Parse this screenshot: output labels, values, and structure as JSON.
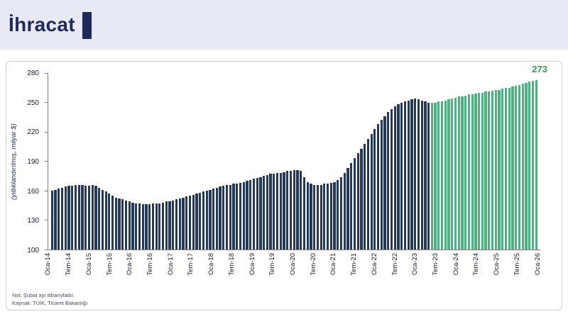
{
  "header": {
    "title": "İhracat"
  },
  "chart_data": {
    "type": "bar",
    "title": "İhracat",
    "ylabel": "(yıllıklandırılmış, milyar $)",
    "xlabel": "",
    "ylim": [
      100,
      280
    ],
    "yticks": [
      100,
      130,
      160,
      190,
      220,
      250,
      280
    ],
    "grid": false,
    "legend": "none",
    "x_tick_labels": [
      "Oca-14",
      "Tem-14",
      "Oca-15",
      "Tem-15",
      "Oca-16",
      "Tem-16",
      "Oca-17",
      "Tem-17",
      "Oca-18",
      "Tem-18",
      "Oca-19",
      "Tem-19",
      "Oca-20",
      "Tem-20",
      "Oca-21",
      "Tem-21",
      "Oca-22",
      "Tem-22",
      "Oca-23",
      "Tem-23",
      "Oca-24",
      "Tem-24",
      "Oca-25",
      "Tem-25",
      "Oca-26"
    ],
    "label_every_n_months": 6,
    "values": [
      160,
      161,
      162,
      163,
      164,
      165,
      165,
      166,
      166,
      166,
      165,
      165,
      166,
      165,
      163,
      161,
      159,
      157,
      155,
      153,
      152,
      151,
      150,
      149,
      148,
      147,
      147,
      146,
      146,
      146,
      147,
      147,
      147,
      148,
      149,
      149,
      150,
      151,
      152,
      153,
      154,
      155,
      156,
      157,
      158,
      159,
      160,
      161,
      162,
      163,
      164,
      165,
      166,
      166,
      167,
      167,
      168,
      169,
      170,
      171,
      172,
      173,
      174,
      175,
      176,
      177,
      177,
      178,
      178,
      179,
      180,
      180,
      181,
      181,
      180,
      174,
      169,
      167,
      166,
      166,
      166,
      167,
      167,
      168,
      169,
      171,
      174,
      178,
      183,
      188,
      193,
      198,
      203,
      208,
      213,
      218,
      223,
      228,
      232,
      236,
      240,
      243,
      246,
      248,
      250,
      251,
      252,
      253,
      254,
      253,
      252,
      251,
      250,
      250,
      250,
      251,
      251,
      252,
      253,
      254,
      255,
      256,
      256,
      257,
      258,
      258,
      259,
      260,
      260,
      261,
      261,
      262,
      263,
      263,
      264,
      265,
      265,
      266,
      267,
      268,
      269,
      270,
      271,
      272,
      273
    ],
    "forecast_start_index": 113,
    "last_value_label": "273",
    "colors": {
      "actual": "#24385b",
      "forecast": "#4ab47e",
      "value_label": "#2da05a",
      "axis": "#808080"
    }
  },
  "footnotes": [
    "Not:  Şubat ayı itibarıyladır.",
    "Kaynak: TÜİK, Ticaret Bakanlığı"
  ]
}
